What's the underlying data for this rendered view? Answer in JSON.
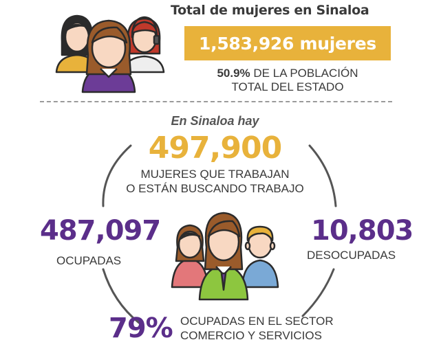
{
  "header": {
    "title": "Total de mujeres en Sinaloa",
    "total_banner": "1,583,926 mujeres",
    "pct_bold": "50.9%",
    "pct_line1_rest": " DE LA POBLACIÓN",
    "pct_line2": "TOTAL DEL ESTADO"
  },
  "labor": {
    "intro": "En Sinaloa hay",
    "total": "497,900",
    "total_label_1": "MUJERES QUE TRABAJAN",
    "total_label_2": "O ESTÁN BUSCANDO TRABAJO",
    "occupied": "487,097",
    "occupied_label": "OCUPADAS",
    "unoccupied": "10,803",
    "unoccupied_label": "DESOCUPADAS",
    "sector_pct": "79%",
    "sector_label_1": "OCUPADAS EN EL SECTOR",
    "sector_label_2": "COMERCIO Y SERVICIOS"
  },
  "colors": {
    "gold": "#e8b23b",
    "purple": "#5b2e8a",
    "text": "#3a3a3a"
  },
  "icons": {
    "top": "women-group-icon",
    "center": "workers-group-icon"
  }
}
